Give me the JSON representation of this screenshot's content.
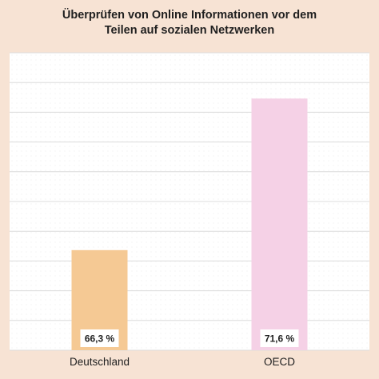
{
  "chart_data": {
    "type": "bar",
    "title_lines": [
      "Überprüfen von Online Informationen vor dem",
      "Teilen auf sozialen Netzwerken"
    ],
    "categories": [
      "Deutschland",
      "OECD"
    ],
    "values": [
      66.3,
      71.6
    ],
    "value_labels": [
      "66,3 %",
      "71,6 %"
    ],
    "ylim": [
      62.8,
      73.2
    ],
    "grid": true,
    "legend": "none",
    "colors": {
      "background": "#f7e3d4",
      "plot_background": "#ffffff",
      "grid": "#dcdcdc",
      "bars": [
        "#f5c994",
        "#f5d1e6"
      ],
      "label_box": "#ffffff",
      "text": "#1f1f1f"
    }
  }
}
